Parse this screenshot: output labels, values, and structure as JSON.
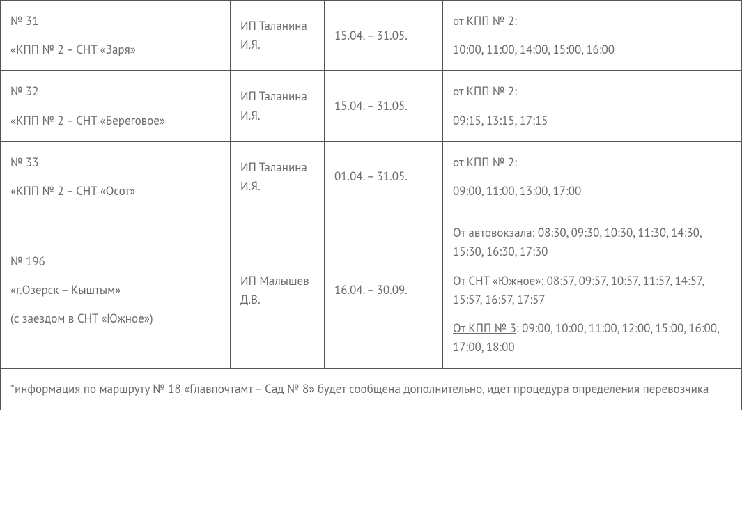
{
  "table": {
    "rows": [
      {
        "route_no": "№ 31",
        "route_name": "«КПП № 2 – СНТ «Заря»",
        "carrier": "ИП Таланина И.Я.",
        "period": "15.04. – 31.05.",
        "schedule": [
          {
            "from_label": "от КПП № 2:",
            "underline": false,
            "times": "10:00, 11:00, 14:00, 15:00, 16:00"
          }
        ]
      },
      {
        "route_no": "№ 32",
        "route_name": "«КПП № 2 – СНТ «Береговое»",
        "carrier": "ИП Таланина И.Я.",
        "period": "15.04. – 31.05.",
        "schedule": [
          {
            "from_label": "от КПП № 2:",
            "underline": false,
            "times": "09:15, 13:15, 17:15"
          }
        ]
      },
      {
        "route_no": "№ 33",
        "route_name": "«КПП № 2 – СНТ «Осот»",
        "carrier": "ИП Таланина И.Я.",
        "period": "01.04. – 31.05.",
        "schedule": [
          {
            "from_label": "от КПП № 2:",
            "underline": false,
            "times": "09:00, 11:00, 13:00, 17:00"
          }
        ]
      },
      {
        "route_no": "№ 196",
        "route_name": "«г.Озерск – Кыштым»",
        "route_sub": "(с заездом в СНТ «Южное»)",
        "carrier": "ИП Малышев Д.В.",
        "period": "16.04. – 30.09.",
        "schedule": [
          {
            "from_label": "От автовокзала",
            "underline": true,
            "times": ": 08:30, 09:30, 10:30, 11:30, 14:30, 15:30, 16:30, 17:30"
          },
          {
            "from_label": "От СНТ «Южное»",
            "underline": true,
            "times": ": 08:57, 09:57, 10:57, 11:57, 14:57, 15:57, 16:57, 17:57"
          },
          {
            "from_label": "От КПП № 3",
            "underline": true,
            "times": ": 09:00, 10:00, 11:00, 12:00, 15:00, 16:00, 17:00, 18:00"
          }
        ]
      }
    ],
    "footnote": "*информация по маршруту № 18 «Главпочтамт – Сад № 8» будет сообщена дополнительно, идет процедура определения перевозчика"
  }
}
